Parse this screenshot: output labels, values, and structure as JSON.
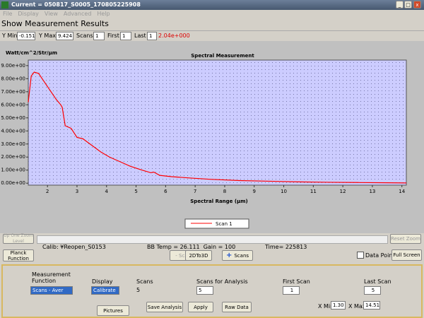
{
  "window": {
    "title": "Current = 050817_S0005_170805225908",
    "menu": [
      "File",
      "Display",
      "View",
      "Advanced",
      "Help"
    ]
  },
  "header": "Show Measurement Results",
  "toolbar": {
    "y_min_label": "Y Min",
    "y_max_label": "Y Max",
    "scans_label": "Scans",
    "scans": "1",
    "first_label": "First",
    "first": "1",
    "last_label": "Last",
    "last": "1",
    "value": "2.04e+000"
  },
  "chart": {
    "type": "line",
    "title": "Spectral Measurement",
    "y_label": "Watt/cm^2/Str/µm",
    "x_label": "Spectral Range (µm)",
    "series": [
      {
        "name": "Scan 1",
        "color": "#ff0000",
        "x": [
          1.35,
          1.45,
          1.55,
          1.7,
          1.85,
          2.0,
          2.15,
          2.3,
          2.45,
          2.5,
          2.6,
          2.8,
          3.0,
          3.2,
          3.5,
          3.8,
          4.1,
          4.5,
          4.8,
          5.2,
          5.5,
          5.6,
          5.8,
          6.2,
          6.8,
          7.5,
          8.5,
          9.5,
          10.5,
          11.5,
          12.5,
          13.5,
          14.15
        ],
        "values": [
          6.2,
          8.2,
          8.5,
          8.4,
          7.9,
          7.4,
          6.9,
          6.4,
          6.0,
          5.8,
          4.4,
          4.2,
          3.5,
          3.4,
          2.9,
          2.4,
          2.0,
          1.6,
          1.3,
          1.0,
          0.8,
          0.85,
          0.6,
          0.5,
          0.4,
          0.3,
          0.2,
          0.15,
          0.1,
          0.07,
          0.05,
          0.03,
          0.02
        ]
      }
    ],
    "xlim": [
      1.35,
      14.15
    ],
    "ylim": [
      -0.151,
      9.424
    ],
    "xticks": [
      2,
      3,
      4,
      5,
      6,
      7,
      8,
      9,
      10,
      11,
      12,
      13,
      14
    ],
    "yticks": [
      {
        "value": 0,
        "label": "0.00e+00"
      },
      {
        "value": 1,
        "label": "1.00e+00"
      },
      {
        "value": 2,
        "label": "2.00e+00"
      },
      {
        "value": 3,
        "label": "3.00e+00"
      },
      {
        "value": 4,
        "label": "4.00e+00"
      },
      {
        "value": 5,
        "label": "5.00e+00"
      },
      {
        "value": 6,
        "label": "6.00e+00"
      },
      {
        "value": 7,
        "label": "7.00e+00"
      },
      {
        "value": 8,
        "label": "8.00e+00"
      },
      {
        "value": 9,
        "label": "9.00e+00"
      }
    ]
  },
  "controls": {
    "up_zoom": "Up One Zoom Level",
    "reset_zoom": "Reset Zoom",
    "calib": "Calib: ¥Reopen_S0153",
    "bb_temp": "BB Temp = 26.111  Gain = 100",
    "time": "Time= 225813",
    "planck": "Planck Function",
    "minus_scans": "- Scans",
    "to3d": "2DTo3D",
    "plus_scans": "Scans",
    "data_points": "Data Points",
    "full_screen": "Full Screen"
  },
  "panel": {
    "measurement_function": "Measurement Function",
    "function_value": "Scans - Aver",
    "display": "Display",
    "display_value": "Calibrate",
    "scans_label": "Scans",
    "scans": "5",
    "analysis_label": "Scans for Analysis",
    "analysis": "5",
    "first_label": "First Scan",
    "first": "1",
    "last_label": "Last Scan",
    "last": "5",
    "xmin_label": "X Min",
    "xmin": "1.30",
    "xmax_label": "X Max",
    "xmax": "14.51",
    "pictures": "Pictures",
    "save": "Save Analysis",
    "apply": "Apply",
    "raw": "Raw Data"
  }
}
